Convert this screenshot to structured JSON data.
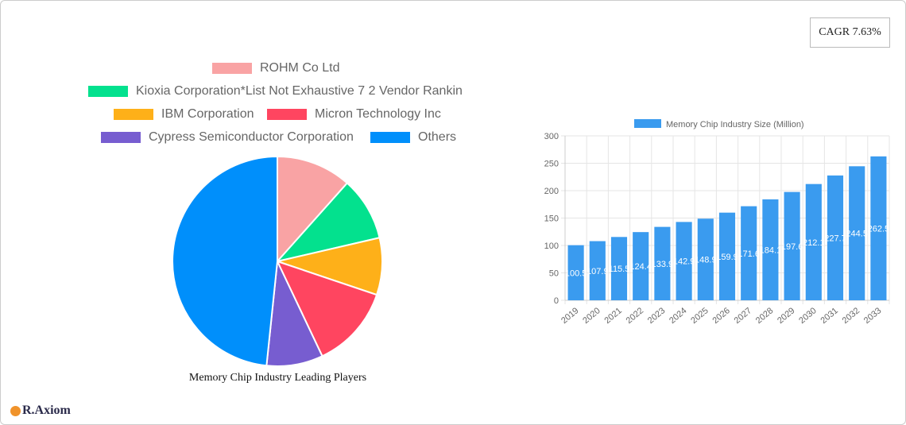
{
  "cagr": "CAGR 7.63%",
  "logo": "R.Axiom",
  "chart_data": [
    {
      "type": "pie",
      "title": "Memory Chip Industry Leading Players",
      "legend_position": "top",
      "slices": [
        {
          "name": "ROHM Co  Ltd",
          "value": 11.6,
          "color": "#f9a3a4"
        },
        {
          "name": "Kioxia Corporation*List Not Exhaustive 7 2 Vendor Rankin",
          "value": 9.8,
          "color": "#03e18e"
        },
        {
          "name": "IBM Corporation",
          "value": 8.8,
          "color": "#feb019"
        },
        {
          "name": "Micron Technology Inc",
          "value": 12.8,
          "color": "#ff4560"
        },
        {
          "name": "Cypress Semiconductor Corporation",
          "value": 8.7,
          "color": "#775dd0"
        },
        {
          "name": "Others",
          "value": 48.4,
          "color": "#008ffb"
        }
      ]
    },
    {
      "type": "bar",
      "legend_position": "top",
      "series": [
        {
          "name": "Memory Chip Industry Size (Million)",
          "color": "#3a9bef",
          "values": [
            100.5,
            107.9,
            115.5,
            124.4,
            133.9,
            142.9,
            148.9,
            159.9,
            171.6,
            184.1,
            197.6,
            212.1,
            227.7,
            244.5,
            262.5
          ]
        }
      ],
      "categories": [
        "2019",
        "2020",
        "2021",
        "2022",
        "2023",
        "2024",
        "2025",
        "2026",
        "2027",
        "2028",
        "2029",
        "2030",
        "2031",
        "2032",
        "2033"
      ],
      "ylim": [
        0,
        300
      ],
      "yticks": [
        "0",
        "50",
        "100",
        "150",
        "200",
        "250",
        "300"
      ],
      "grid": true
    }
  ]
}
